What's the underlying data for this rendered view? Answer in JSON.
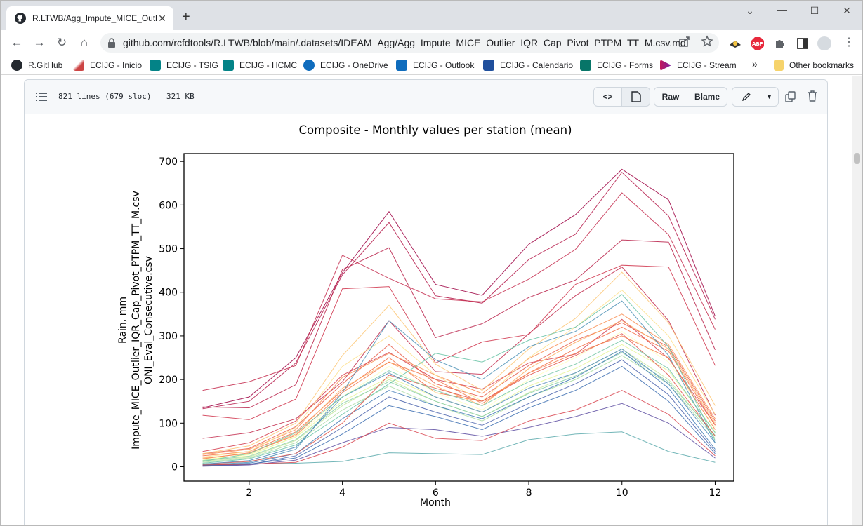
{
  "browser": {
    "tab_title": "R.LTWB/Agg_Impute_MICE_Outlie",
    "url": "github.com/rcfdtools/R.LTWB/blob/main/.datasets/IDEAM_Agg/Agg_Impute_MICE_Outlier_IQR_Cap_Pivot_PTPM_TT_M.csv.md",
    "bookmarks": [
      "R.GitHub",
      "ECIJG - Inicio",
      "ECIJG - TSIG",
      "ECIJG - HCMC",
      "ECIJG - OneDrive",
      "ECIJG - Outlook",
      "ECIJG - Calendario",
      "ECIJG - Forms",
      "ECIJG - Stream"
    ],
    "more_bookmarks": "»",
    "other_bookmarks": "Other bookmarks"
  },
  "file": {
    "lines": "821 lines (679 sloc)",
    "size": "321 KB",
    "raw_label": "Raw",
    "blame_label": "Blame"
  },
  "colors": {
    "chrome_bg": "#dee1e6",
    "red": "#b2133f",
    "blue": "#3f5ba8"
  },
  "chart_data": {
    "type": "line",
    "title": "Composite - Monthly values per station (mean)",
    "xlabel": "Month",
    "ylabel": [
      "Rain, mm",
      "Impute_MICE_Outlier_IQR_Cap_Pivot_PTPM_TT_M.csv",
      "ONI_Eval_Consecutive.csv"
    ],
    "xlim": [
      0.6,
      12.4
    ],
    "ylim": [
      -33,
      718
    ],
    "xticks": [
      2,
      4,
      6,
      8,
      10,
      12
    ],
    "yticks": [
      0,
      100,
      200,
      300,
      400,
      500,
      600,
      700
    ],
    "colormap": "Spectral",
    "x": [
      1,
      2,
      3,
      4,
      5,
      6,
      7,
      8,
      9,
      10,
      11,
      12
    ],
    "series": [
      {
        "color": "#9e0142",
        "values": [
          135,
          160,
          250,
          445,
          585,
          418,
          393,
          510,
          578,
          682,
          612,
          345
        ]
      },
      {
        "color": "#b51a4a",
        "values": [
          133,
          150,
          238,
          440,
          560,
          392,
          375,
          475,
          533,
          675,
          575,
          338
        ]
      },
      {
        "color": "#c42c4d",
        "values": [
          175,
          195,
          232,
          485,
          432,
          385,
          378,
          430,
          498,
          628,
          532,
          315
        ]
      },
      {
        "color": "#b81e48",
        "values": [
          137,
          135,
          188,
          452,
          502,
          296,
          328,
          388,
          428,
          520,
          515,
          268
        ]
      },
      {
        "color": "#d0354c",
        "values": [
          118,
          108,
          155,
          408,
          413,
          238,
          286,
          303,
          418,
          462,
          458,
          232
        ]
      },
      {
        "color": "#c22a4c",
        "values": [
          65,
          78,
          110,
          195,
          335,
          218,
          212,
          305,
          392,
          458,
          335,
          118
        ]
      },
      {
        "color": "#d53e4f",
        "values": [
          35,
          55,
          105,
          210,
          262,
          200,
          178,
          238,
          258,
          338,
          248,
          96
        ]
      },
      {
        "color": "#e75a47",
        "values": [
          30,
          42,
          92,
          190,
          280,
          190,
          160,
          232,
          290,
          330,
          275,
          105
        ]
      },
      {
        "color": "#f46d43",
        "values": [
          25,
          35,
          80,
          175,
          250,
          170,
          150,
          215,
          270,
          320,
          265,
          95
        ]
      },
      {
        "color": "#f98e52",
        "values": [
          28,
          40,
          85,
          205,
          260,
          210,
          168,
          248,
          300,
          350,
          280,
          110
        ]
      },
      {
        "color": "#fdae61",
        "values": [
          20,
          30,
          75,
          180,
          240,
          185,
          140,
          225,
          285,
          335,
          270,
          100
        ]
      },
      {
        "color": "#fdc776",
        "values": [
          30,
          48,
          100,
          255,
          370,
          235,
          175,
          270,
          340,
          446,
          330,
          140
        ]
      },
      {
        "color": "#fee08b",
        "values": [
          22,
          35,
          90,
          230,
          300,
          210,
          150,
          250,
          320,
          405,
          300,
          120
        ]
      },
      {
        "color": "#ffffbf",
        "values": [
          18,
          25,
          70,
          160,
          230,
          170,
          130,
          200,
          250,
          310,
          240,
          90
        ]
      },
      {
        "color": "#e6f598",
        "values": [
          15,
          28,
          68,
          150,
          205,
          160,
          125,
          185,
          225,
          280,
          220,
          80
        ]
      },
      {
        "color": "#c7e89e",
        "values": [
          12,
          22,
          60,
          140,
          200,
          150,
          115,
          170,
          215,
          270,
          200,
          70
        ]
      },
      {
        "color": "#abdda4",
        "values": [
          10,
          20,
          55,
          130,
          185,
          140,
          105,
          160,
          200,
          255,
          190,
          65
        ]
      },
      {
        "color": "#88cfa4",
        "values": [
          14,
          24,
          62,
          145,
          195,
          150,
          115,
          168,
          208,
          262,
          195,
          72
        ]
      },
      {
        "color": "#66c2a5",
        "values": [
          8,
          18,
          50,
          120,
          190,
          260,
          240,
          290,
          320,
          395,
          275,
          60
        ]
      },
      {
        "color": "#5aa9ac",
        "values": [
          5,
          6,
          8,
          12,
          32,
          30,
          28,
          62,
          75,
          80,
          35,
          10
        ]
      },
      {
        "color": "#4b90b5",
        "values": [
          4,
          10,
          40,
          170,
          335,
          245,
          200,
          275,
          310,
          380,
          255,
          55
        ]
      },
      {
        "color": "#3f79b5",
        "values": [
          3,
          8,
          30,
          110,
          175,
          140,
          110,
          160,
          205,
          265,
          180,
          40
        ]
      },
      {
        "color": "#4a63ad",
        "values": [
          2,
          5,
          25,
          90,
          160,
          125,
          95,
          145,
          190,
          245,
          165,
          35
        ]
      },
      {
        "color": "#5e4fa2",
        "values": [
          1,
          4,
          15,
          55,
          90,
          85,
          70,
          90,
          115,
          145,
          100,
          20
        ]
      },
      {
        "color": "#3a6cb0",
        "values": [
          3,
          6,
          20,
          75,
          140,
          115,
          85,
          135,
          175,
          230,
          150,
          30
        ]
      },
      {
        "color": "#d8434d",
        "values": [
          4,
          6,
          10,
          45,
          100,
          65,
          60,
          105,
          130,
          175,
          120,
          25
        ]
      },
      {
        "color": "#e2554a",
        "values": [
          6,
          12,
          30,
          100,
          210,
          180,
          150,
          210,
          255,
          305,
          210,
          70
        ]
      },
      {
        "color": "#f57b4a",
        "values": [
          18,
          32,
          72,
          170,
          240,
          200,
          145,
          215,
          260,
          300,
          250,
          85
        ]
      },
      {
        "color": "#4c88b8",
        "values": [
          6,
          14,
          45,
          160,
          215,
          160,
          125,
          180,
          215,
          270,
          190,
          55
        ]
      },
      {
        "color": "#73c6a4",
        "values": [
          12,
          30,
          78,
          160,
          220,
          175,
          140,
          195,
          235,
          290,
          225,
          78
        ]
      }
    ]
  }
}
